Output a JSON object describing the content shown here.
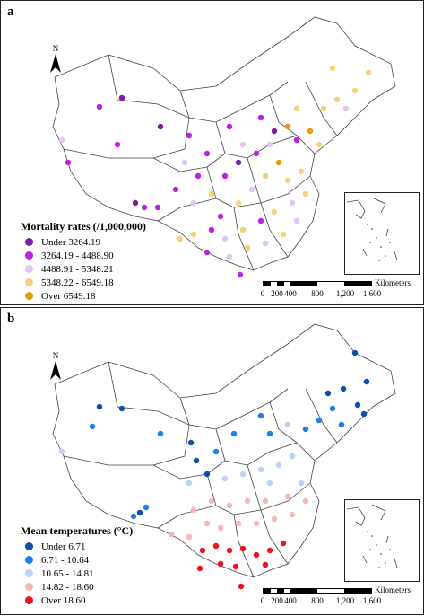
{
  "panels": [
    {
      "letter": "a",
      "legend_title": "Mortality rates (/1,000,000)",
      "north_label": "N",
      "scale": {
        "unit": "Kilometers",
        "labels": [
          "0",
          "200",
          "400",
          "800",
          "1,200",
          "1,600"
        ]
      },
      "classes": [
        {
          "label": "Under 3264.19",
          "color": "#7b1fa2"
        },
        {
          "label": "3264.19 - 4488.90",
          "color": "#bf1fe0"
        },
        {
          "label": "4488.91 - 5348.21",
          "color": "#e3c4f2"
        },
        {
          "label": "5348.22 - 6549.18",
          "color": "#f9cf7d"
        },
        {
          "label": "Over 6549.18",
          "color": "#e89a10"
        }
      ]
    },
    {
      "letter": "b",
      "legend_title": "Mean temperatures (°C)",
      "north_label": "N",
      "scale": {
        "unit": "Kilometers",
        "labels": [
          "0",
          "200",
          "400",
          "800",
          "1,200",
          "1,600"
        ]
      },
      "classes": [
        {
          "label": "Under 6.71",
          "color": "#0b4fa8"
        },
        {
          "label": "6.71 - 10.64",
          "color": "#1f7fe8"
        },
        {
          "label": "10.65 - 14.81",
          "color": "#bcd3f6"
        },
        {
          "label": "14.82 - 18.60",
          "color": "#f7b7b2"
        },
        {
          "label": "Over 18.60",
          "color": "#e8141b"
        }
      ]
    }
  ]
}
